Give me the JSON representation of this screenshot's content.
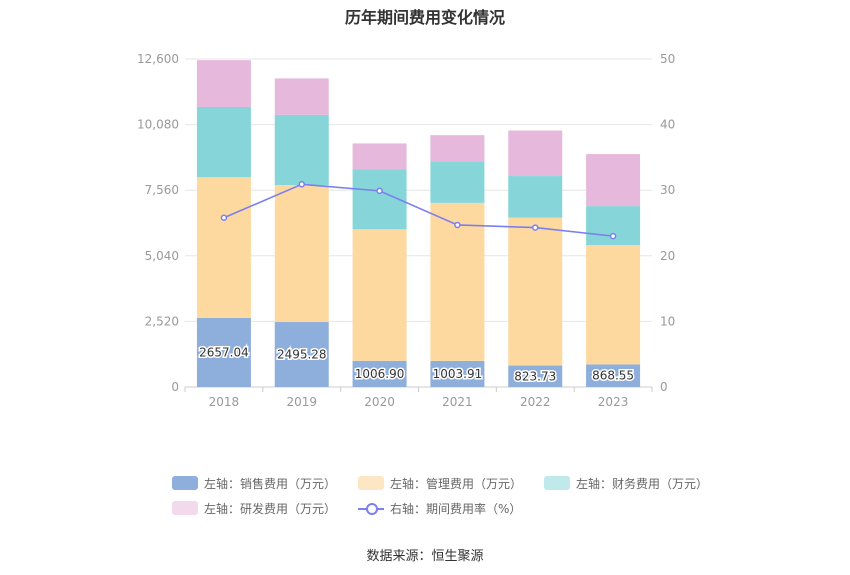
{
  "title": "历年期间费用变化情况",
  "source": "数据来源：恒生聚源",
  "colors": {
    "sales": "#8eaedc",
    "mgmt": "#fed99f",
    "finance": "#86d6d9",
    "rd": "#e6b9dc",
    "rate": "#7b7ff0"
  },
  "legend": [
    {
      "label": "左轴：销售费用（万元）",
      "color": "#8eaedc",
      "type": "box"
    },
    {
      "label": "左轴：管理费用（万元）",
      "color": "#fde6c4",
      "type": "box"
    },
    {
      "label": "左轴：财务费用（万元）",
      "color": "#bfe9ea",
      "type": "box"
    },
    {
      "label": "左轴：研发费用（万元）",
      "color": "#f2d9ec",
      "type": "box"
    },
    {
      "label": "右轴：期间费用率（%）",
      "color": "#7b7ff0",
      "type": "line"
    }
  ],
  "chart_data": {
    "type": "bar",
    "stacked": true,
    "categories": [
      "2018",
      "2019",
      "2020",
      "2021",
      "2022",
      "2023"
    ],
    "series": [
      {
        "name": "左轴：销售费用（万元）",
        "axis": "left",
        "values": [
          2657.04,
          2495.28,
          1006.9,
          1003.91,
          823.73,
          868.55
        ],
        "labels": [
          "2657.04",
          "2495.28",
          "1006.90",
          "1003.91",
          "823.73",
          "868.55"
        ]
      },
      {
        "name": "左轴：管理费用（万元）",
        "axis": "left",
        "values": [
          5400,
          5260,
          5050,
          6070,
          5680,
          4580
        ]
      },
      {
        "name": "左轴：财务费用（万元）",
        "axis": "left",
        "values": [
          2700,
          2700,
          2300,
          1600,
          1600,
          1500
        ]
      },
      {
        "name": "左轴：研发费用（万元）",
        "axis": "left",
        "values": [
          1800,
          1400,
          1000,
          1000,
          1750,
          2000
        ]
      },
      {
        "name": "右轴：期间费用率（%）",
        "axis": "right",
        "type": "line",
        "values": [
          25.8,
          30.9,
          29.9,
          24.7,
          24.3,
          23.0
        ]
      }
    ],
    "y_left": {
      "ticks": [
        "0",
        "2,520",
        "5,040",
        "7,560",
        "10,080",
        "12,600"
      ],
      "ylim": [
        0,
        12600
      ]
    },
    "y_right": {
      "ticks": [
        "0",
        "10",
        "20",
        "30",
        "40",
        "50"
      ],
      "ylim": [
        0,
        50
      ]
    },
    "grid": true,
    "legend_position": "bottom"
  }
}
